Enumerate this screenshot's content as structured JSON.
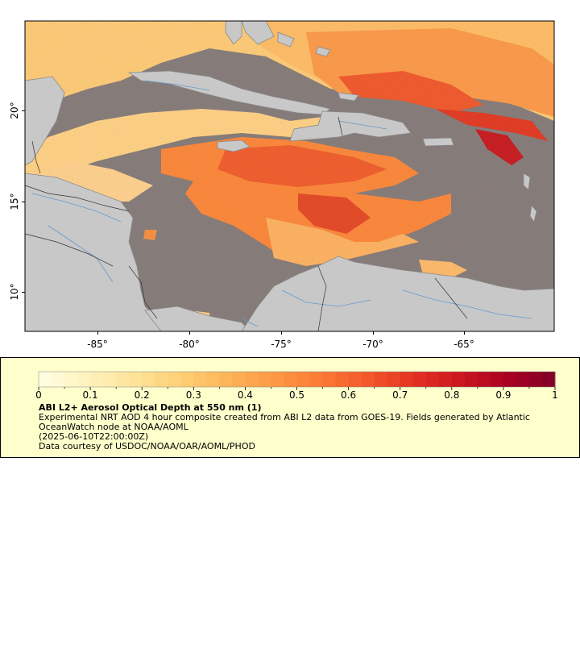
{
  "map": {
    "lat_ticks": [
      "20°",
      "15°",
      "10°"
    ],
    "lon_ticks": [
      "-85°",
      "-80°",
      "-75°",
      "-70°",
      "-65°"
    ],
    "colors": {
      "ocean": "#7f7f7f",
      "land": "#c8c8c8",
      "coast": "#8a8a8a",
      "river": "#6699cc",
      "border": "#222222"
    }
  },
  "legend": {
    "ticks": [
      "0",
      "0.1",
      "0.2",
      "0.3",
      "0.4",
      "0.5",
      "0.6",
      "0.7",
      "0.8",
      "0.9",
      "1"
    ],
    "colormap": [
      "#ffffe4",
      "#fff3c0",
      "#fee39a",
      "#fed076",
      "#fdb55a",
      "#fd9a44",
      "#fb7a35",
      "#f3582b",
      "#e33222",
      "#cc1520",
      "#a80023",
      "#800026"
    ],
    "title": "ABI L2+ Aerosol Optical Depth at 550 nm (1)",
    "line1": "Experimental NRT AOD 4 hour composite created from ABI L2 data from GOES-19. Fields generated by Atlantic OceanWatch node at NOAA/AOML",
    "line2": "(2025-06-10T22:00:00Z)",
    "line3": "Data courtesy of USDOC/NOAA/OAR/AOML/PHOD"
  }
}
